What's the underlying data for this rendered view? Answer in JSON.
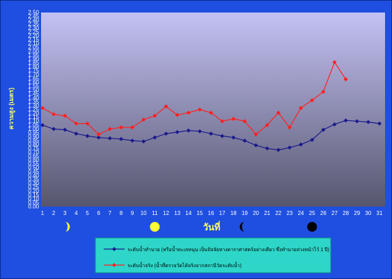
{
  "chart_data": {
    "type": "line",
    "title": "",
    "xlabel": "วันที่",
    "ylabel": "ความสูง (เมตร)",
    "x": [
      1,
      2,
      3,
      4,
      5,
      6,
      7,
      8,
      9,
      10,
      11,
      12,
      13,
      14,
      15,
      16,
      17,
      18,
      19,
      20,
      21,
      22,
      23,
      24,
      25,
      26,
      27,
      28,
      29,
      30,
      31
    ],
    "ylim": [
      0,
      2.5
    ],
    "ytick_step": 0.05,
    "grid": false,
    "legend_position": "bottom",
    "series": [
      {
        "name": "ระดับน้ำทำนาย (หรือน้ำทะเลหนุน เป็นปัจจัยทางดาราศาสตร์อย่างเดียว ซึ่งทำนายล่วงหน้าไว้ 1 ปี)",
        "color": "#1a1a8c",
        "marker": "diamond",
        "values": [
          1.05,
          1.0,
          0.99,
          0.94,
          0.91,
          0.89,
          0.88,
          0.87,
          0.85,
          0.84,
          0.89,
          0.94,
          0.96,
          0.98,
          0.97,
          0.94,
          0.91,
          0.89,
          0.85,
          0.79,
          0.75,
          0.73,
          0.76,
          0.8,
          0.86,
          0.99,
          1.06,
          1.11,
          1.1,
          1.09,
          1.07
        ]
      },
      {
        "name": "ระดับน้ำจริง (น้ำที่ตรวจวัดได้จริงจากสถานีวัดระดับน้ำ)",
        "color": "#ff2020",
        "marker": "diamond",
        "values": [
          1.27,
          1.19,
          1.17,
          1.07,
          1.07,
          0.93,
          1.0,
          1.02,
          1.02,
          1.12,
          1.17,
          1.29,
          1.18,
          1.21,
          1.25,
          1.21,
          1.1,
          1.13,
          1.1,
          0.93,
          1.05,
          1.21,
          1.02,
          1.27,
          1.37,
          1.48,
          1.86,
          1.64,
          null,
          null,
          null
        ]
      }
    ],
    "annotations": [
      {
        "type": "moon-phase",
        "phase": "waxing-crescent",
        "x": 3
      },
      {
        "type": "moon-phase",
        "phase": "full-moon",
        "x": 11
      },
      {
        "type": "moon-phase",
        "phase": "waning-crescent",
        "x": 19
      },
      {
        "type": "moon-phase",
        "phase": "new-moon",
        "x": 25
      }
    ]
  },
  "colors": {
    "frame": "#1f4fe0",
    "plot_top": "#c4c2f4",
    "plot_bottom": "#56566e",
    "legend_bg": "#2dd6c8",
    "axis_text": "#ffffff",
    "axis_title": "#ffff66",
    "moon": "#ffff33"
  }
}
